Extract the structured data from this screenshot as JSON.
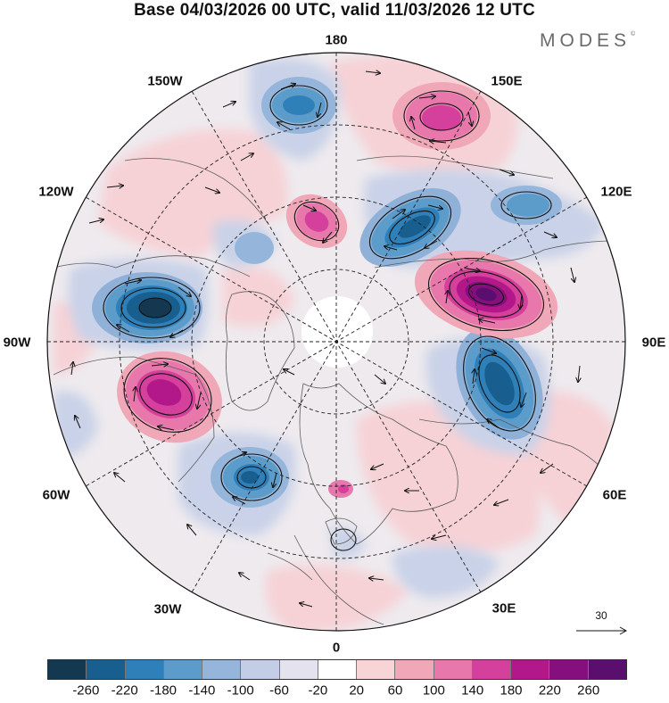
{
  "header": {
    "title": "Base 04/03/2026 00 UTC, valid 11/03/2026 12 UTC",
    "brand": "MODES",
    "brand_mark": "©"
  },
  "map": {
    "projection": "north-polar-stereographic",
    "longitude_labels": [
      "180",
      "150E",
      "120E",
      "90E",
      "60E",
      "30E",
      "0",
      "30W",
      "60W",
      "90W",
      "120W",
      "150W"
    ],
    "reference_vector": {
      "value": "30",
      "icon": "arrow-right-icon"
    }
  },
  "colorbar": {
    "colors": [
      "#13384f",
      "#185e8e",
      "#2f80b8",
      "#5b9ccb",
      "#95b6da",
      "#c3cde6",
      "#e3e2ee",
      "#ffffff",
      "#f7d5d7",
      "#f0a8b9",
      "#e878ab",
      "#d4409b",
      "#b2188a",
      "#85107d",
      "#5a0e6e"
    ],
    "ticks": [
      "-260",
      "-220",
      "-180",
      "-140",
      "-100",
      "-60",
      "-20",
      "20",
      "60",
      "100",
      "140",
      "180",
      "220",
      "260"
    ]
  }
}
